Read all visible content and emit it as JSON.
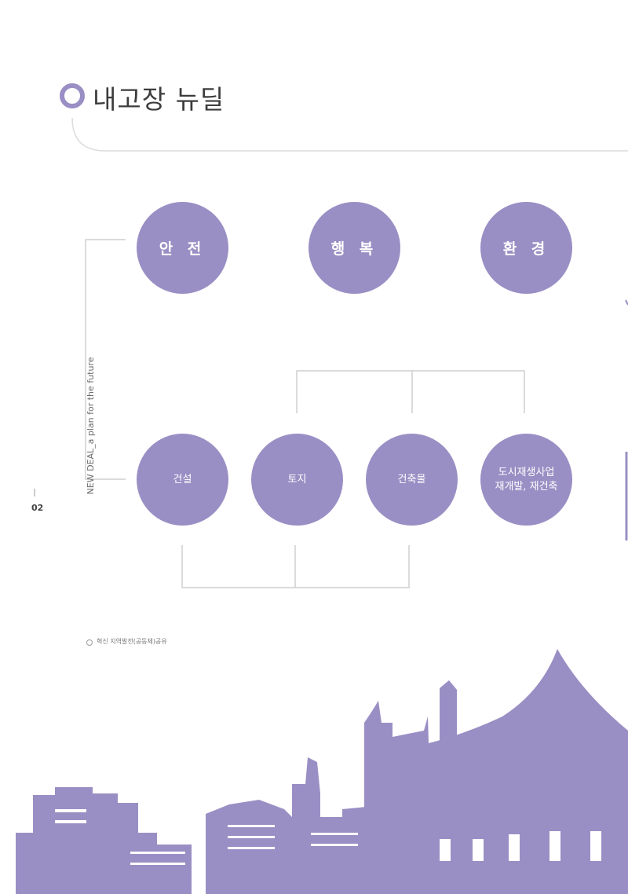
{
  "header": {
    "title": "내고장 뉴딜"
  },
  "side": {
    "vertical_text": "NEW DEAL_a plan for the future",
    "page_number": "02"
  },
  "top_circles": [
    {
      "label": "안 전"
    },
    {
      "label": "행 복"
    },
    {
      "label": "환 경"
    }
  ],
  "bottom_circles": [
    {
      "line1": "건설",
      "line2": ""
    },
    {
      "line1": "토지",
      "line2": ""
    },
    {
      "line1": "건축물",
      "line2": ""
    },
    {
      "line1": "도시재생사업",
      "line2": "재개발, 재건축"
    }
  ],
  "note": {
    "text": "혁신 지역발전(공동체)공유"
  },
  "colors": {
    "accent": "#9a8fc4",
    "line": "#cfcfcf",
    "text": "#3c3c3c"
  }
}
